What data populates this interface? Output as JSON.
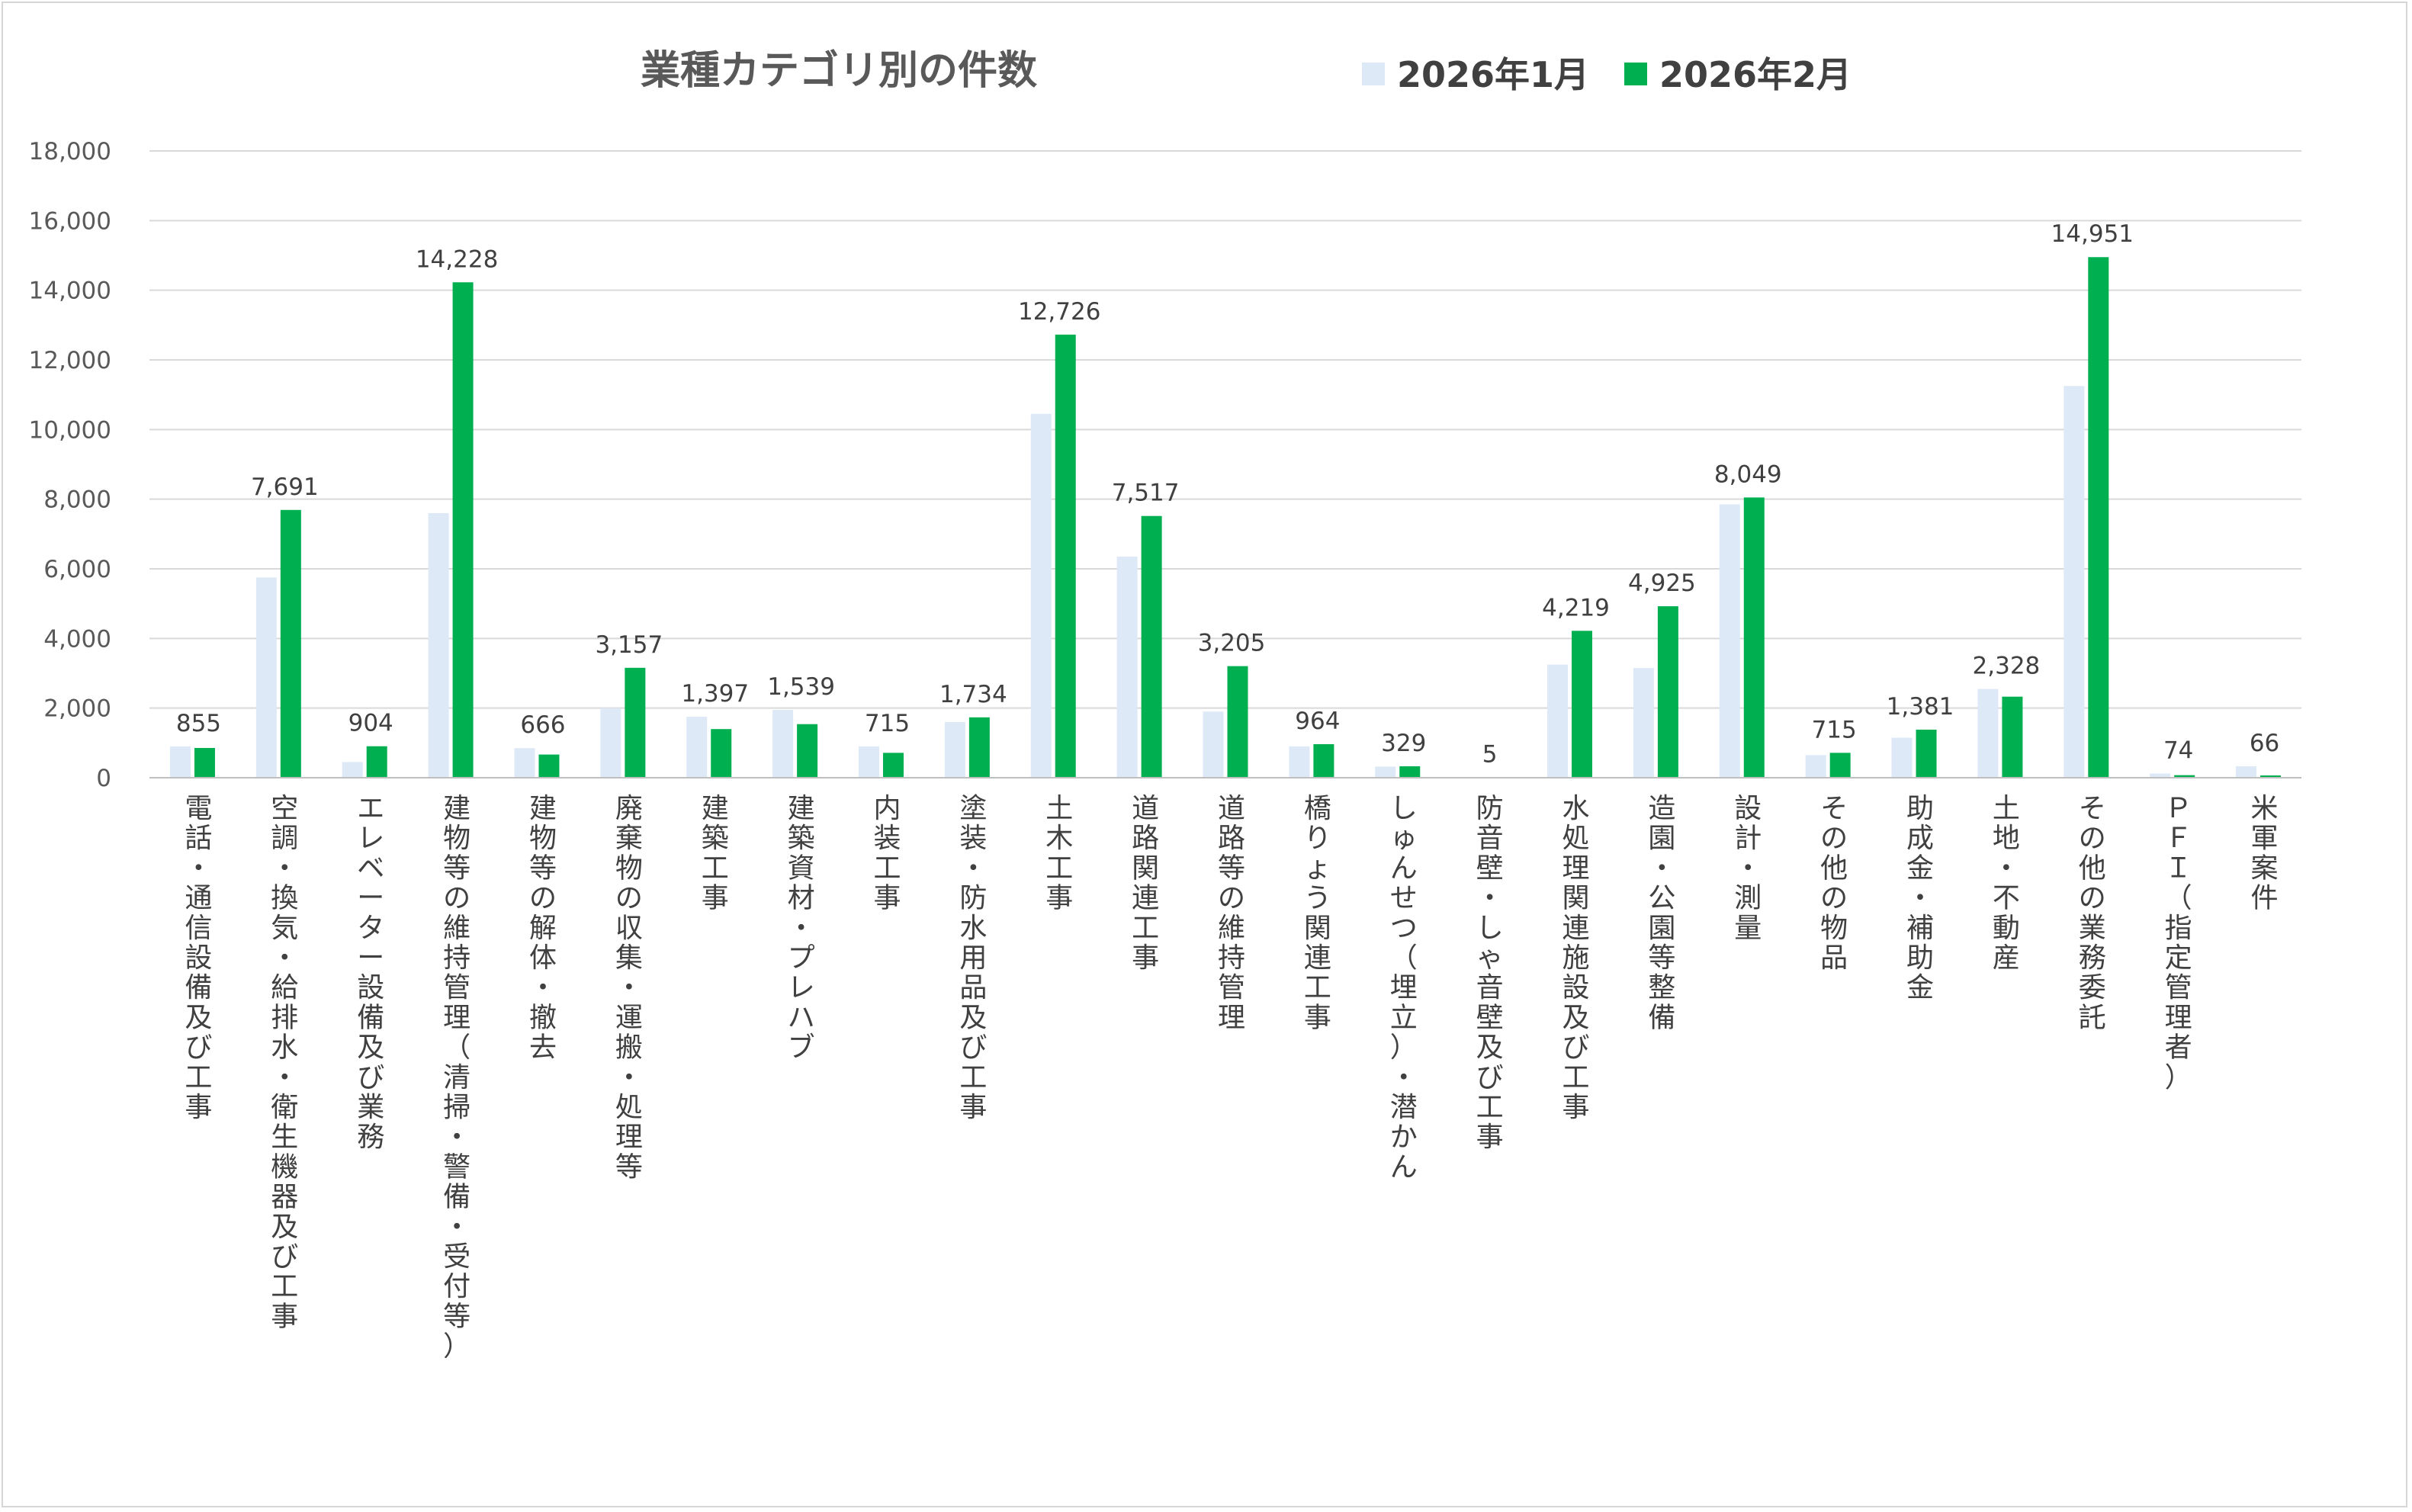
{
  "chart_data": {
    "type": "bar",
    "title": "業種カテゴリ別の件数",
    "xlabel": "",
    "ylabel": "",
    "ylim": [
      0,
      18000
    ],
    "yticks": [
      0,
      2000,
      4000,
      6000,
      8000,
      10000,
      12000,
      14000,
      16000,
      18000
    ],
    "ytick_labels": [
      "0",
      "2,000",
      "4,000",
      "6,000",
      "8,000",
      "10,000",
      "12,000",
      "14,000",
      "16,000",
      "18,000"
    ],
    "grid": true,
    "legend_position": "top",
    "categories": [
      "電話・通信設備及び工事",
      "空調・換気・給排水・衛生機器及び工事",
      "エレベーター設備及び業務",
      "建物等の維持管理（清掃・警備・受付等）",
      "建物等の解体・撤去",
      "廃棄物の収集・運搬・処理等",
      "建築工事",
      "建築資材・プレハブ",
      "内装工事",
      "塗装・防水用品及び工事",
      "土木工事",
      "道路関連工事",
      "道路等の維持管理",
      "橋りょう関連工事",
      "しゅんせつ（埋立）・潜かん",
      "防音壁・しゃ音壁及び工事",
      "水処理関連施設及び工事",
      "造園・公園等整備",
      "設計・測量",
      "その他の物品",
      "助成金・補助金",
      "土地・不動産",
      "その他の業務委託",
      "ＰＦＩ（指定管理者）",
      "米軍案件"
    ],
    "series": [
      {
        "name": "2026年1月",
        "color": "#dde9f7",
        "values": [
          900,
          5750,
          450,
          7600,
          850,
          2000,
          1750,
          1950,
          900,
          1600,
          10450,
          6350,
          1900,
          900,
          320,
          10,
          3250,
          3150,
          7850,
          650,
          1150,
          2550,
          11250,
          120,
          330
        ],
        "labels": []
      },
      {
        "name": "2026年2月",
        "color": "#00b050",
        "values": [
          855,
          7691,
          904,
          14228,
          666,
          3157,
          1397,
          1539,
          715,
          1734,
          12726,
          7517,
          3205,
          964,
          329,
          5,
          4219,
          4925,
          8049,
          715,
          1381,
          2328,
          14951,
          74,
          66
        ],
        "labels": [
          "855",
          "7,691",
          "904",
          "14,228",
          "666",
          "3,157",
          "1,397",
          "1,539",
          "715",
          "1,734",
          "12,726",
          "7,517",
          "3,205",
          "964",
          "329",
          "5",
          "4,219",
          "4,925",
          "8,049",
          "715",
          "1,381",
          "2,328",
          "14,951",
          "74",
          "66"
        ]
      }
    ],
    "colors": {
      "gridline": "#d9d9d9",
      "axis": "#bfbfbf"
    }
  }
}
